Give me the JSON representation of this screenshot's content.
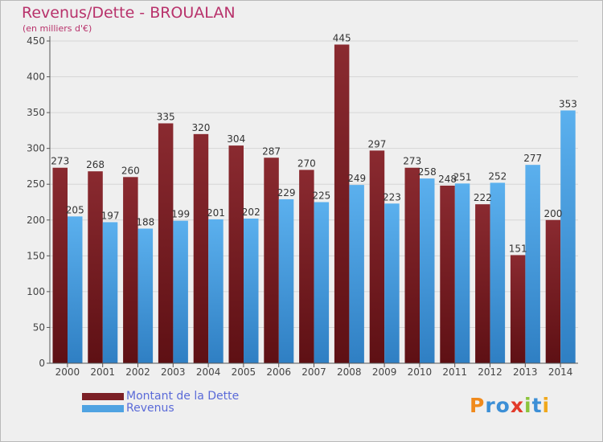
{
  "header": {
    "title": "Revenus/Dette - BROUALAN",
    "subtitle": "(en milliers d'€)"
  },
  "legend": {
    "items": [
      {
        "label": "Montant de la Dette",
        "color": "#7b1f25"
      },
      {
        "label": "Revenus",
        "color": "#4fa3e2"
      }
    ]
  },
  "logo": {
    "letters": [
      "P",
      "r",
      "o",
      "x",
      "i",
      "t",
      "i"
    ],
    "colors": [
      "#f08a1c",
      "#3c8fd6",
      "#3c8fd6",
      "#e23a2a",
      "#8cc43c",
      "#3c8fd6",
      "#f0a81c"
    ]
  },
  "chart_data": {
    "type": "bar",
    "categories": [
      "2000",
      "2001",
      "2002",
      "2003",
      "2004",
      "2005",
      "2006",
      "2007",
      "2008",
      "2009",
      "2010",
      "2011",
      "2012",
      "2013",
      "2014"
    ],
    "series": [
      {
        "name": "Montant de la Dette",
        "color": "#7b1f25",
        "values": [
          273,
          268,
          260,
          335,
          320,
          304,
          287,
          270,
          445,
          297,
          273,
          248,
          222,
          151,
          200
        ]
      },
      {
        "name": "Revenus",
        "color": "#4fa3e2",
        "values": [
          205,
          197,
          188,
          199,
          201,
          202,
          229,
          225,
          249,
          223,
          258,
          251,
          252,
          277,
          353
        ]
      }
    ],
    "ylim": [
      0,
      450
    ],
    "yticks": [
      0,
      50,
      100,
      150,
      200,
      250,
      300,
      350,
      400,
      450
    ],
    "grid": true,
    "legend_position": "bottom-left"
  }
}
